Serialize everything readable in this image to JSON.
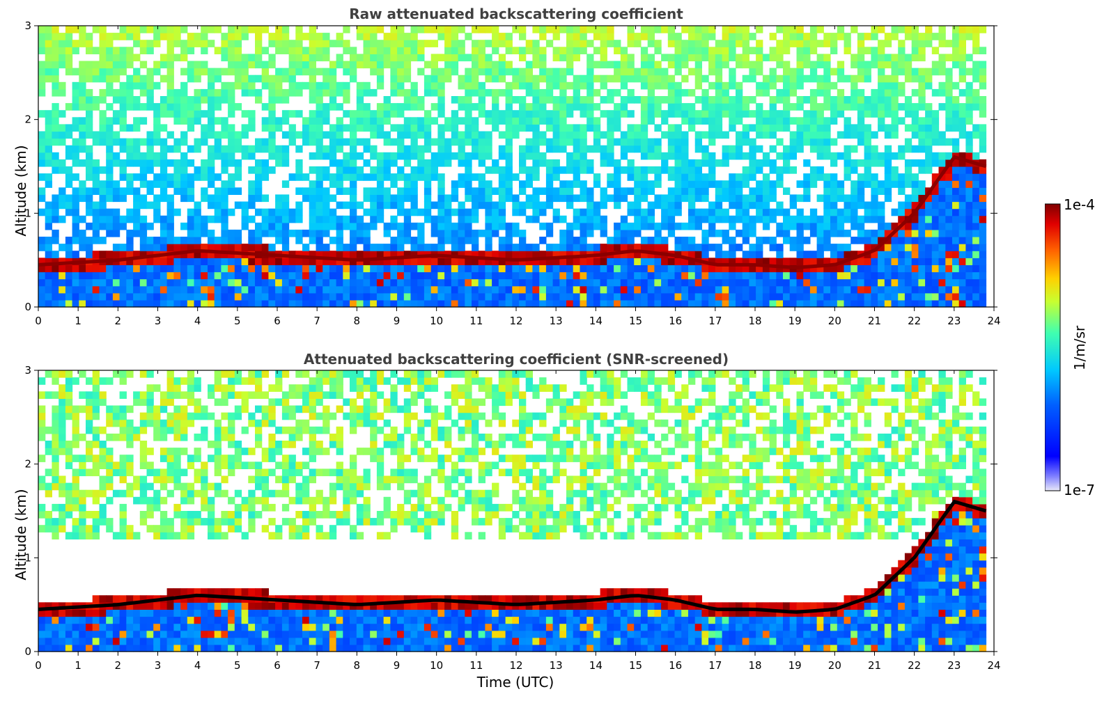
{
  "chart_data": [
    {
      "type": "heatmap",
      "title": "Raw attenuated backscattering coefficient",
      "xlabel": "",
      "ylabel": "Altitude (km)",
      "xlim": [
        0,
        24
      ],
      "ylim": [
        0,
        3
      ],
      "x_ticks": [
        "0",
        "1",
        "2",
        "3",
        "4",
        "5",
        "6",
        "7",
        "8",
        "9",
        "10",
        "11",
        "12",
        "13",
        "14",
        "15",
        "16",
        "17",
        "18",
        "19",
        "20",
        "21",
        "22",
        "23",
        "24"
      ],
      "y_ticks": [
        "0",
        "1",
        "2",
        "3"
      ],
      "colorscale": "jet",
      "features": {
        "boundary_layer_top_km": [
          [
            0,
            0.45
          ],
          [
            2,
            0.5
          ],
          [
            4,
            0.6
          ],
          [
            6,
            0.55
          ],
          [
            8,
            0.5
          ],
          [
            10,
            0.55
          ],
          [
            12,
            0.5
          ],
          [
            14,
            0.55
          ],
          [
            15,
            0.6
          ],
          [
            16,
            0.55
          ],
          [
            17,
            0.45
          ],
          [
            18,
            0.45
          ],
          [
            19,
            0.42
          ],
          [
            20,
            0.45
          ],
          [
            21,
            0.6
          ],
          [
            22,
            1.0
          ],
          [
            23,
            1.6
          ],
          [
            23.8,
            1.5
          ]
        ],
        "data_end_utc": 23.8
      }
    },
    {
      "type": "heatmap",
      "title": "Attenuated backscattering coefficient (SNR-screened)",
      "xlabel": "Time (UTC)",
      "ylabel": "Altitude (km)",
      "xlim": [
        0,
        24
      ],
      "ylim": [
        0,
        3
      ],
      "x_ticks": [
        "0",
        "1",
        "2",
        "3",
        "4",
        "5",
        "6",
        "7",
        "8",
        "9",
        "10",
        "11",
        "12",
        "13",
        "14",
        "15",
        "16",
        "17",
        "18",
        "19",
        "20",
        "21",
        "22",
        "23",
        "24"
      ],
      "y_ticks": [
        "0",
        "1",
        "2",
        "3"
      ],
      "colorscale": "jet",
      "features": {
        "boundary_layer_top_km": [
          [
            0,
            0.45
          ],
          [
            2,
            0.5
          ],
          [
            4,
            0.6
          ],
          [
            6,
            0.55
          ],
          [
            8,
            0.5
          ],
          [
            10,
            0.55
          ],
          [
            12,
            0.5
          ],
          [
            14,
            0.55
          ],
          [
            15,
            0.6
          ],
          [
            16,
            0.55
          ],
          [
            17,
            0.45
          ],
          [
            18,
            0.45
          ],
          [
            19,
            0.42
          ],
          [
            20,
            0.45
          ],
          [
            21,
            0.6
          ],
          [
            22,
            1.0
          ],
          [
            23,
            1.6
          ],
          [
            23.8,
            1.5
          ]
        ],
        "data_end_utc": 23.8
      }
    }
  ],
  "colorbar": {
    "max_label": "1e-4",
    "min_label": "1e-7",
    "unit_label": "1/m/sr"
  }
}
